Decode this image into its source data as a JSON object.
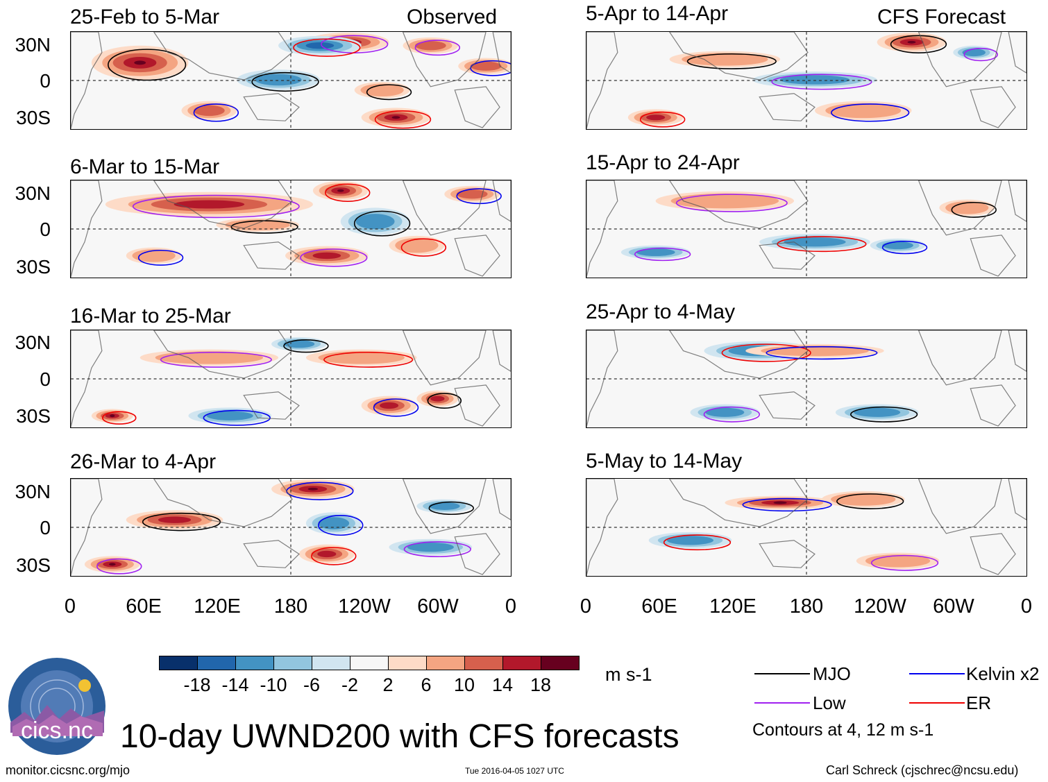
{
  "title": "10-day UWND200 with CFS forecasts",
  "observed_label": "Observed",
  "forecast_label": "CFS Forecast",
  "observed_panels": [
    {
      "title": "25-Feb to 5-Mar"
    },
    {
      "title": "6-Mar to 15-Mar"
    },
    {
      "title": "16-Mar to 25-Mar"
    },
    {
      "title": "26-Mar to 4-Apr"
    }
  ],
  "forecast_panels": [
    {
      "title": "5-Apr to 14-Apr"
    },
    {
      "title": "15-Apr to 24-Apr"
    },
    {
      "title": "25-Apr to 4-May"
    },
    {
      "title": "5-May to 14-May"
    }
  ],
  "lat_labels": [
    "30N",
    "0",
    "30S"
  ],
  "lon_labels": [
    "0",
    "60E",
    "120E",
    "180",
    "120W",
    "60W",
    "0"
  ],
  "colorbar": {
    "units": "m s-1",
    "ticks": [
      "-18",
      "-14",
      "-10",
      "-6",
      "-2",
      "2",
      "6",
      "10",
      "14",
      "18"
    ],
    "colors": [
      "#08306b",
      "#2166ac",
      "#4393c3",
      "#92c5de",
      "#d1e5f0",
      "#f7f7f7",
      "#fddbc7",
      "#f4a582",
      "#d6604d",
      "#b2182b",
      "#67001f"
    ]
  },
  "legend": {
    "items": [
      {
        "label": "MJO",
        "color": "#000000"
      },
      {
        "label": "Kelvin x2",
        "color": "#0000ee"
      },
      {
        "label": "Low",
        "color": "#a020f0"
      },
      {
        "label": "ER",
        "color": "#ee0000"
      }
    ],
    "contours_note": "Contours at 4, 12 m s-1"
  },
  "logo_text": "cics.nc",
  "footer": {
    "left": "monitor.cicsnc.org/mjo",
    "center": "Tue 2016-04-05 1027 UTC",
    "right": "Carl Schreck (cjschrec@ncsu.edu)"
  }
}
